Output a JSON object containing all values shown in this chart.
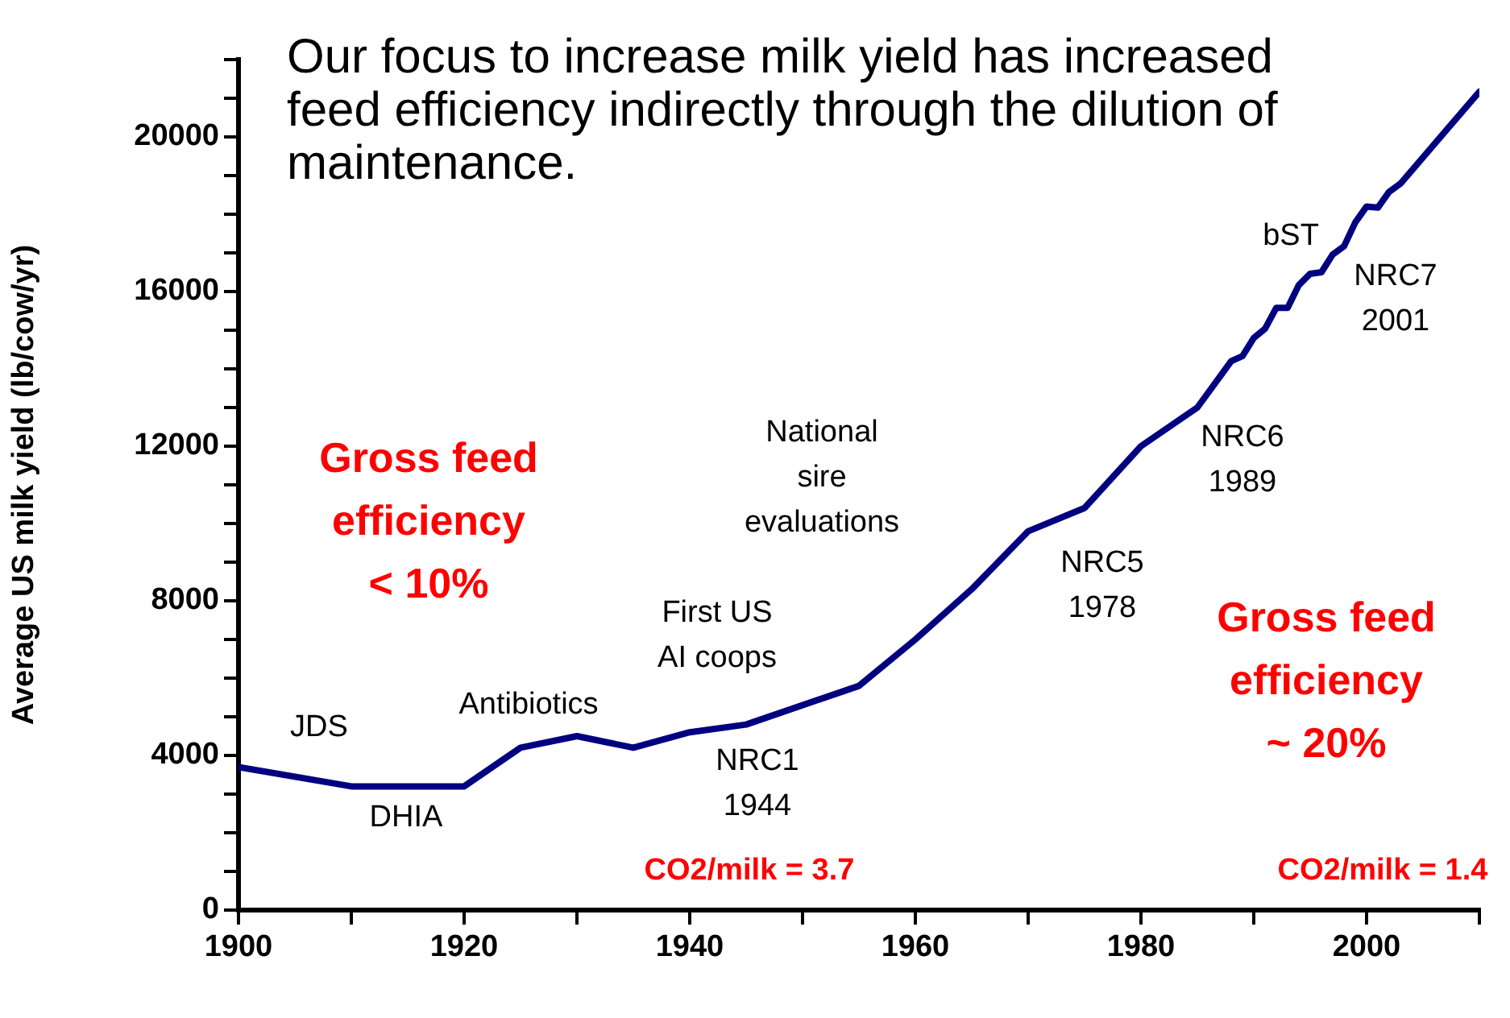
{
  "chart_data": {
    "type": "line",
    "title": "Our focus to increase milk yield has increased feed efficiency indirectly through the dilution of maintenance.",
    "ylabel": "Average US milk yield (lb/cow/yr)",
    "x": [
      1900,
      1910,
      1920,
      1925,
      1930,
      1935,
      1940,
      1945,
      1955,
      1960,
      1965,
      1970,
      1975,
      1980,
      1985,
      1988,
      1989,
      1990,
      1991,
      1992,
      1993,
      1994,
      1995,
      1996,
      1997,
      1998,
      1999,
      2000,
      2001,
      2002,
      2003,
      2010
    ],
    "series": [
      {
        "color": "#000080",
        "values": [
          3700,
          3200,
          3200,
          4200,
          4500,
          4200,
          4600,
          4800,
          5800,
          7000,
          8300,
          9800,
          10400,
          12000,
          13000,
          14200,
          14330,
          14800,
          15040,
          15580,
          15580,
          16170,
          16460,
          16500,
          16960,
          17170,
          17790,
          18200,
          18170,
          18580,
          18790,
          21170
        ]
      }
    ],
    "xlim": [
      1900,
      2010
    ],
    "xticks": [
      1900,
      {
        "value": 1910,
        "label": null
      },
      1920,
      {
        "value": 1930,
        "label": null
      },
      1940,
      {
        "value": 1950,
        "label": null
      },
      1960,
      {
        "value": 1970,
        "label": null
      },
      1980,
      {
        "value": 1990,
        "label": null
      },
      2000,
      {
        "value": 2010,
        "label": null
      }
    ],
    "ylim": [
      0,
      22000
    ],
    "yticks": [
      0,
      {
        "value": 1000,
        "label": null
      },
      {
        "value": 2000,
        "label": null
      },
      {
        "value": 3000,
        "label": null
      },
      4000,
      {
        "value": 5000,
        "label": null
      },
      {
        "value": 6000,
        "label": null
      },
      {
        "value": 7000,
        "label": null
      },
      8000,
      {
        "value": 9000,
        "label": null
      },
      {
        "value": 10000,
        "label": null
      },
      {
        "value": 11000,
        "label": null
      },
      12000,
      {
        "value": 13000,
        "label": null
      },
      {
        "value": 14000,
        "label": null
      },
      {
        "value": 15000,
        "label": null
      },
      16000,
      {
        "value": 17000,
        "label": null
      },
      {
        "value": 18000,
        "label": null
      },
      {
        "value": 19000,
        "label": null
      },
      20000,
      {
        "value": 21000,
        "label": null
      },
      {
        "value": 22000,
        "label": null
      }
    ],
    "grid": false,
    "legend": false,
    "marker": "none",
    "line_style": "solid",
    "annotations": [
      "JDS",
      "DHIA",
      "Antibiotics",
      "First US\nAI coops",
      "National\nsire\nevaluations",
      "NRC1\n1944",
      "NRC5\n1978",
      "NRC6\n1989",
      "bST",
      "NRC7\n2001",
      "Gross feed\nefficiency\n< 10%",
      "Gross feed\nefficiency\n~ 20%",
      "CO2/milk = 3.7",
      "CO2/milk = 1.4"
    ]
  }
}
